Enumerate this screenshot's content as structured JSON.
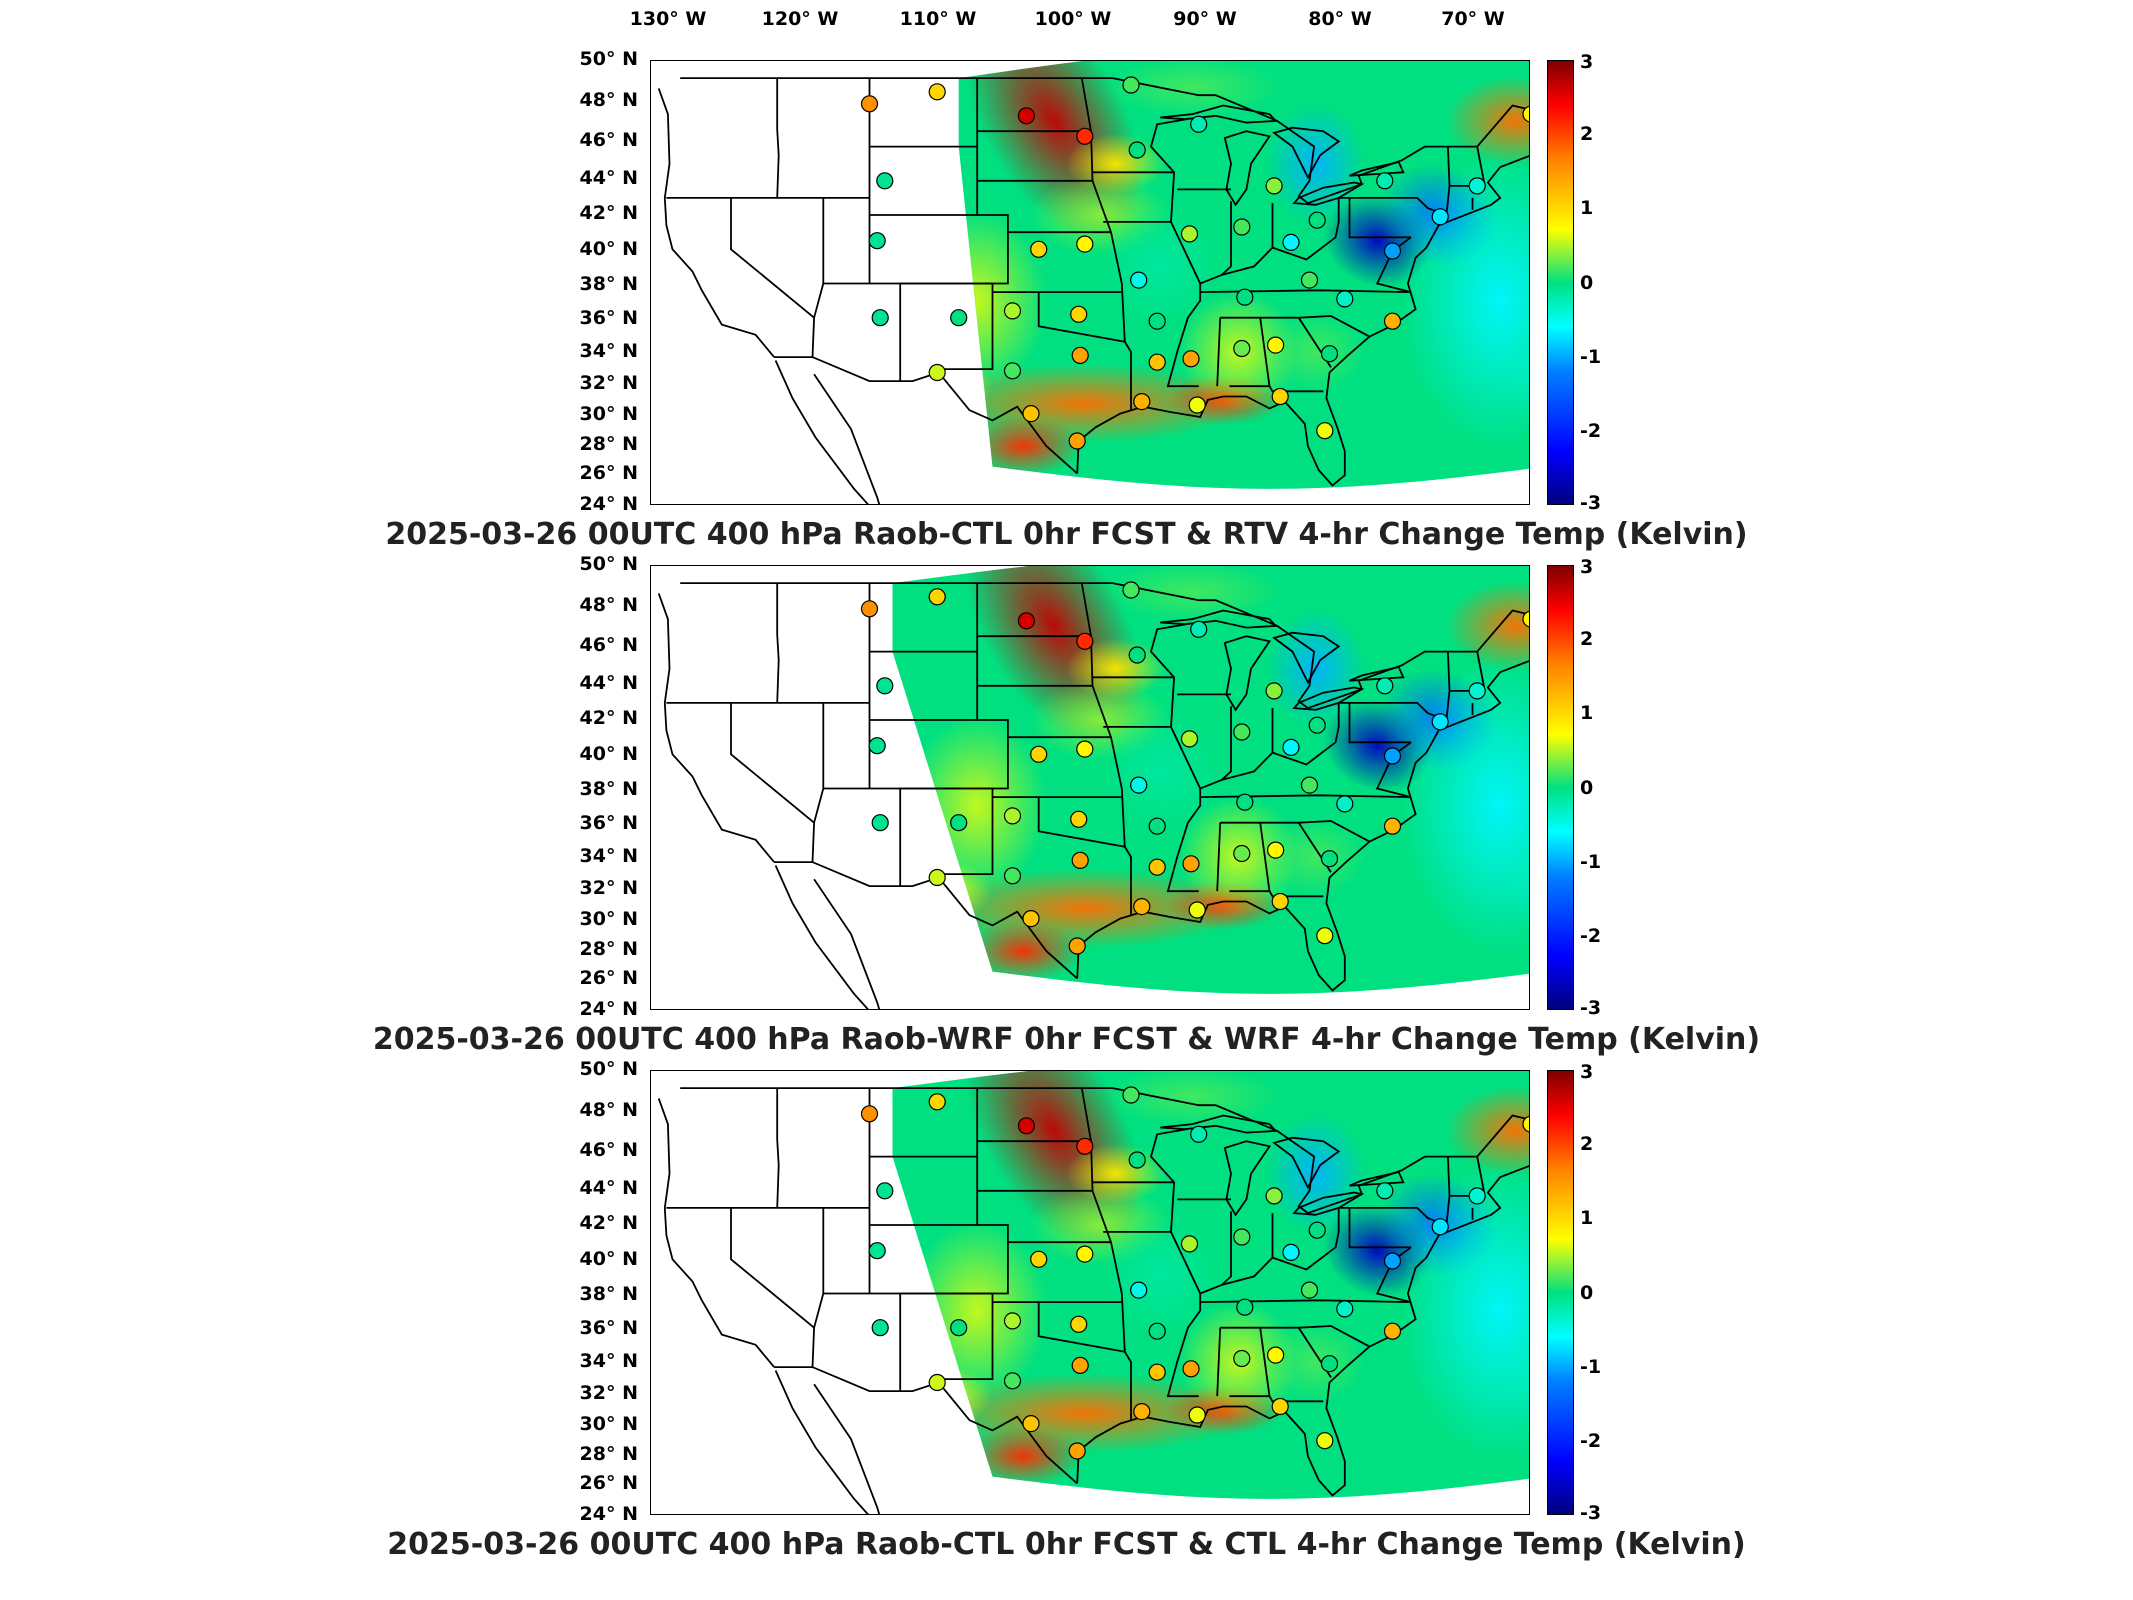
{
  "lon_labels": [
    "130° W",
    "120° W",
    "110° W",
    "100° W",
    "90° W",
    "80° W",
    "70° W"
  ],
  "lat_labels": [
    "50° N",
    "48° N",
    "46° N",
    "44° N",
    "42° N",
    "40° N",
    "38° N",
    "36° N",
    "34° N",
    "32° N",
    "30° N",
    "28° N",
    "26° N",
    "24° N"
  ],
  "colorbar": {
    "ticks": [
      "3",
      "2",
      "1",
      "0",
      "-1",
      "-2",
      "-3"
    ],
    "range": [
      -3,
      3
    ],
    "colormap": [
      "#00007f",
      "#0000ff",
      "#0080ff",
      "#00ffff",
      "#00e080",
      "#ffff00",
      "#ff8000",
      "#ff0000",
      "#7f0000"
    ]
  },
  "panels": [
    {
      "caption": "2025-03-26 00UTC 400 hPa Raob-CTL 0hr FCST & RTV 4-hr Change Temp (Kelvin)"
    },
    {
      "caption": "2025-03-26 00UTC 400 hPa Raob-WRF 0hr FCST & WRF 4-hr Change Temp (Kelvin)"
    },
    {
      "caption": "2025-03-26 00UTC 400 hPa Raob-CTL 0hr FCST & CTL 4-hr Change Temp (Kelvin)"
    }
  ],
  "stations": [
    {
      "lon": -111.0,
      "lat": 47.5,
      "v": 1.4
    },
    {
      "lon": -106.6,
      "lat": 48.2,
      "v": 1.0
    },
    {
      "lon": -100.8,
      "lat": 46.8,
      "v": 2.5
    },
    {
      "lon": -97.0,
      "lat": 45.6,
      "v": 2.0
    },
    {
      "lon": -94.0,
      "lat": 48.6,
      "v": 0.2
    },
    {
      "lon": -93.6,
      "lat": 44.8,
      "v": 0.0
    },
    {
      "lon": -89.6,
      "lat": 46.3,
      "v": -0.3
    },
    {
      "lon": -84.7,
      "lat": 42.7,
      "v": 0.4
    },
    {
      "lon": -110.0,
      "lat": 43.0,
      "v": -0.1
    },
    {
      "lon": -110.5,
      "lat": 39.5,
      "v": -0.1
    },
    {
      "lon": -110.3,
      "lat": 35.0,
      "v": -0.1
    },
    {
      "lon": -105.2,
      "lat": 35.0,
      "v": 0.0
    },
    {
      "lon": -100.0,
      "lat": 39.0,
      "v": 1.0
    },
    {
      "lon": -97.0,
      "lat": 39.3,
      "v": 0.8
    },
    {
      "lon": -93.5,
      "lat": 37.2,
      "v": -0.6
    },
    {
      "lon": -90.2,
      "lat": 39.9,
      "v": 0.5
    },
    {
      "lon": -86.8,
      "lat": 40.3,
      "v": 0.2
    },
    {
      "lon": -83.6,
      "lat": 39.4,
      "v": -0.8
    },
    {
      "lon": -81.9,
      "lat": 40.7,
      "v": 0.0
    },
    {
      "lon": -97.4,
      "lat": 35.2,
      "v": 1.0
    },
    {
      "lon": -101.7,
      "lat": 35.4,
      "v": 0.5
    },
    {
      "lon": -92.3,
      "lat": 34.8,
      "v": 0.0
    },
    {
      "lon": -86.6,
      "lat": 36.2,
      "v": 0.0
    },
    {
      "lon": -82.4,
      "lat": 37.2,
      "v": 0.2
    },
    {
      "lon": -80.1,
      "lat": 36.1,
      "v": -0.4
    },
    {
      "lon": -77.0,
      "lat": 34.8,
      "v": 1.2
    },
    {
      "lon": -81.1,
      "lat": 32.9,
      "v": 0.0
    },
    {
      "lon": -84.6,
      "lat": 33.4,
      "v": 0.8
    },
    {
      "lon": -86.8,
      "lat": 33.2,
      "v": 0.3
    },
    {
      "lon": -90.1,
      "lat": 32.6,
      "v": 1.3
    },
    {
      "lon": -92.3,
      "lat": 32.4,
      "v": 1.1
    },
    {
      "lon": -97.3,
      "lat": 32.8,
      "v": 1.3
    },
    {
      "lon": -101.7,
      "lat": 31.9,
      "v": 0.2
    },
    {
      "lon": -106.6,
      "lat": 31.8,
      "v": 0.6
    },
    {
      "lon": -100.5,
      "lat": 29.4,
      "v": 1.1
    },
    {
      "lon": -97.5,
      "lat": 27.8,
      "v": 1.3
    },
    {
      "lon": -93.3,
      "lat": 30.1,
      "v": 1.2
    },
    {
      "lon": -89.7,
      "lat": 29.9,
      "v": 0.7
    },
    {
      "lon": -84.3,
      "lat": 30.4,
      "v": 1.0
    },
    {
      "lon": -81.4,
      "lat": 28.4,
      "v": 0.7
    },
    {
      "lon": -77.5,
      "lat": 43.0,
      "v": -0.3
    },
    {
      "lon": -73.9,
      "lat": 40.9,
      "v": -0.9
    },
    {
      "lon": -71.5,
      "lat": 42.7,
      "v": -0.5
    },
    {
      "lon": -68.0,
      "lat": 46.9,
      "v": 0.8
    },
    {
      "lon": -77.0,
      "lat": 38.9,
      "v": -1.3
    }
  ]
}
